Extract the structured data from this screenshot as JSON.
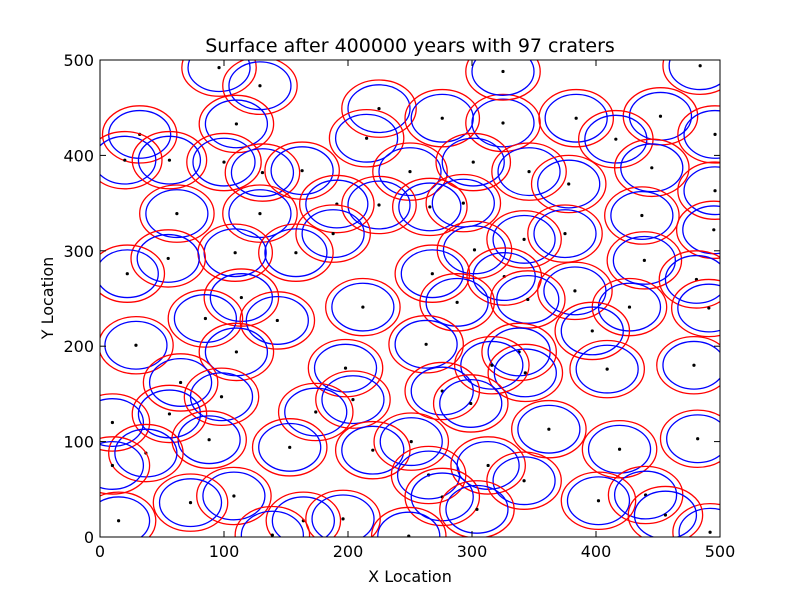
{
  "chart_data": {
    "type": "scatter",
    "title": "Surface after 400000 years with 97 craters",
    "xlabel": "X Location",
    "ylabel": "Y Location",
    "xlim": [
      0,
      500
    ],
    "ylim": [
      0,
      500
    ],
    "xticks": [
      0,
      100,
      200,
      300,
      400,
      500
    ],
    "yticks": [
      0,
      100,
      200,
      300,
      400,
      500
    ],
    "grid": false,
    "crater_count": 97,
    "years": 400000,
    "colors": {
      "crater_rim": "#0000ff",
      "outer_ring": "#ff0000",
      "center": "#000000"
    },
    "crater_rim_radius": 25,
    "outer_ring_radius": 30,
    "craters": [
      [
        96,
        492
      ],
      [
        129,
        473
      ],
      [
        225,
        449
      ],
      [
        32,
        422
      ],
      [
        110,
        433
      ],
      [
        20,
        395
      ],
      [
        56,
        395
      ],
      [
        276,
        439
      ],
      [
        325,
        434
      ],
      [
        384,
        439
      ],
      [
        452,
        441
      ],
      [
        484,
        494
      ],
      [
        325,
        488
      ],
      [
        215,
        418
      ],
      [
        416,
        417
      ],
      [
        496,
        422
      ],
      [
        100,
        393
      ],
      [
        131,
        382
      ],
      [
        163,
        384
      ],
      [
        250,
        383
      ],
      [
        301,
        393
      ],
      [
        346,
        383
      ],
      [
        378,
        370
      ],
      [
        445,
        387
      ],
      [
        496,
        363
      ],
      [
        191,
        349
      ],
      [
        225,
        348
      ],
      [
        266,
        346
      ],
      [
        293,
        350
      ],
      [
        62,
        339
      ],
      [
        129,
        339
      ],
      [
        437,
        337
      ],
      [
        495,
        322
      ],
      [
        188,
        318
      ],
      [
        342,
        312
      ],
      [
        375,
        318
      ],
      [
        302,
        301
      ],
      [
        109,
        298
      ],
      [
        158,
        298
      ],
      [
        55,
        292
      ],
      [
        22,
        276
      ],
      [
        268,
        276
      ],
      [
        326,
        273
      ],
      [
        439,
        290
      ],
      [
        481,
        270
      ],
      [
        383,
        258
      ],
      [
        345,
        249
      ],
      [
        288,
        246
      ],
      [
        114,
        251
      ],
      [
        85,
        229
      ],
      [
        143,
        227
      ],
      [
        212,
        241
      ],
      [
        427,
        241
      ],
      [
        491,
        240
      ],
      [
        397,
        216
      ],
      [
        263,
        202
      ],
      [
        29,
        201
      ],
      [
        110,
        194
      ],
      [
        338,
        194
      ],
      [
        343,
        172
      ],
      [
        316,
        180
      ],
      [
        409,
        176
      ],
      [
        479,
        180
      ],
      [
        198,
        177
      ],
      [
        65,
        162
      ],
      [
        98,
        147
      ],
      [
        204,
        144
      ],
      [
        174,
        131
      ],
      [
        276,
        153
      ],
      [
        299,
        140
      ],
      [
        56,
        129
      ],
      [
        10,
        120
      ],
      [
        88,
        102
      ],
      [
        37,
        88
      ],
      [
        362,
        113
      ],
      [
        419,
        92
      ],
      [
        482,
        103
      ],
      [
        153,
        94
      ],
      [
        220,
        91
      ],
      [
        251,
        100
      ],
      [
        265,
        65
      ],
      [
        313,
        75
      ],
      [
        342,
        59
      ],
      [
        10,
        75
      ],
      [
        276,
        42
      ],
      [
        108,
        43
      ],
      [
        73,
        36
      ],
      [
        440,
        44
      ],
      [
        402,
        38
      ],
      [
        304,
        29
      ],
      [
        164,
        17
      ],
      [
        196,
        19
      ],
      [
        15,
        17
      ],
      [
        139,
        2
      ],
      [
        249,
        1
      ],
      [
        492,
        5
      ],
      [
        456,
        23
      ]
    ]
  }
}
